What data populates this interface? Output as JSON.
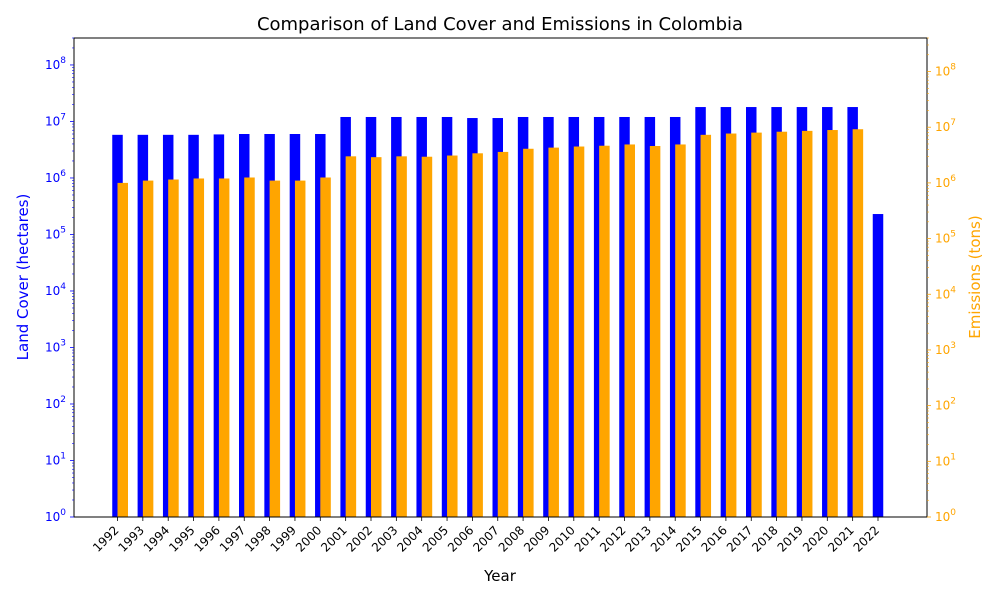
{
  "chart_data": {
    "type": "bar",
    "title": "Comparison of Land Cover and Emissions in Colombia",
    "xlabel": "Year",
    "ylabel_left": "Land Cover (hectares)",
    "ylabel_right": "Emissions (tons)",
    "y_scale": "log",
    "ylim_left": [
      1,
      300000000
    ],
    "ylim_right": [
      1,
      400000000
    ],
    "left_ticks": [
      "10^0",
      "10^1",
      "10^2",
      "10^3",
      "10^4",
      "10^5",
      "10^6",
      "10^7",
      "10^8"
    ],
    "right_ticks": [
      "10^0",
      "10^1",
      "10^2",
      "10^3",
      "10^4",
      "10^5",
      "10^6",
      "10^7",
      "10^8"
    ],
    "categories": [
      "1992",
      "1993",
      "1994",
      "1995",
      "1996",
      "1997",
      "1998",
      "1999",
      "2000",
      "2001",
      "2002",
      "2003",
      "2004",
      "2005",
      "2006",
      "2007",
      "2008",
      "2009",
      "2010",
      "2011",
      "2012",
      "2013",
      "2014",
      "2015",
      "2016",
      "2017",
      "2018",
      "2019",
      "2020",
      "2021",
      "2022"
    ],
    "series": [
      {
        "name": "Land Cover (hectares)",
        "axis": "left",
        "color": "#0000ff",
        "values": [
          5800000,
          5800000,
          5800000,
          5800000,
          5900000,
          6000000,
          6000000,
          6000000,
          6000000,
          12000000,
          12000000,
          12000000,
          12000000,
          12000000,
          11500000,
          11500000,
          12000000,
          12000000,
          12000000,
          12000000,
          12000000,
          12000000,
          12000000,
          18000000,
          18000000,
          18000000,
          18000000,
          18000000,
          18000000,
          18000000,
          230000
        ]
      },
      {
        "name": "Emissions (tons)",
        "axis": "right",
        "color": "#ffa500",
        "values": [
          1000000,
          1100000,
          1150000,
          1200000,
          1200000,
          1250000,
          1100000,
          1100000,
          1250000,
          3000000,
          2900000,
          3000000,
          2950000,
          3100000,
          3400000,
          3600000,
          4100000,
          4300000,
          4500000,
          4650000,
          4900000,
          4600000,
          4900000,
          7300000,
          7700000,
          8000000,
          8300000,
          8600000,
          8900000,
          9200000,
          null
        ]
      }
    ],
    "grid": false,
    "legend": "none"
  }
}
